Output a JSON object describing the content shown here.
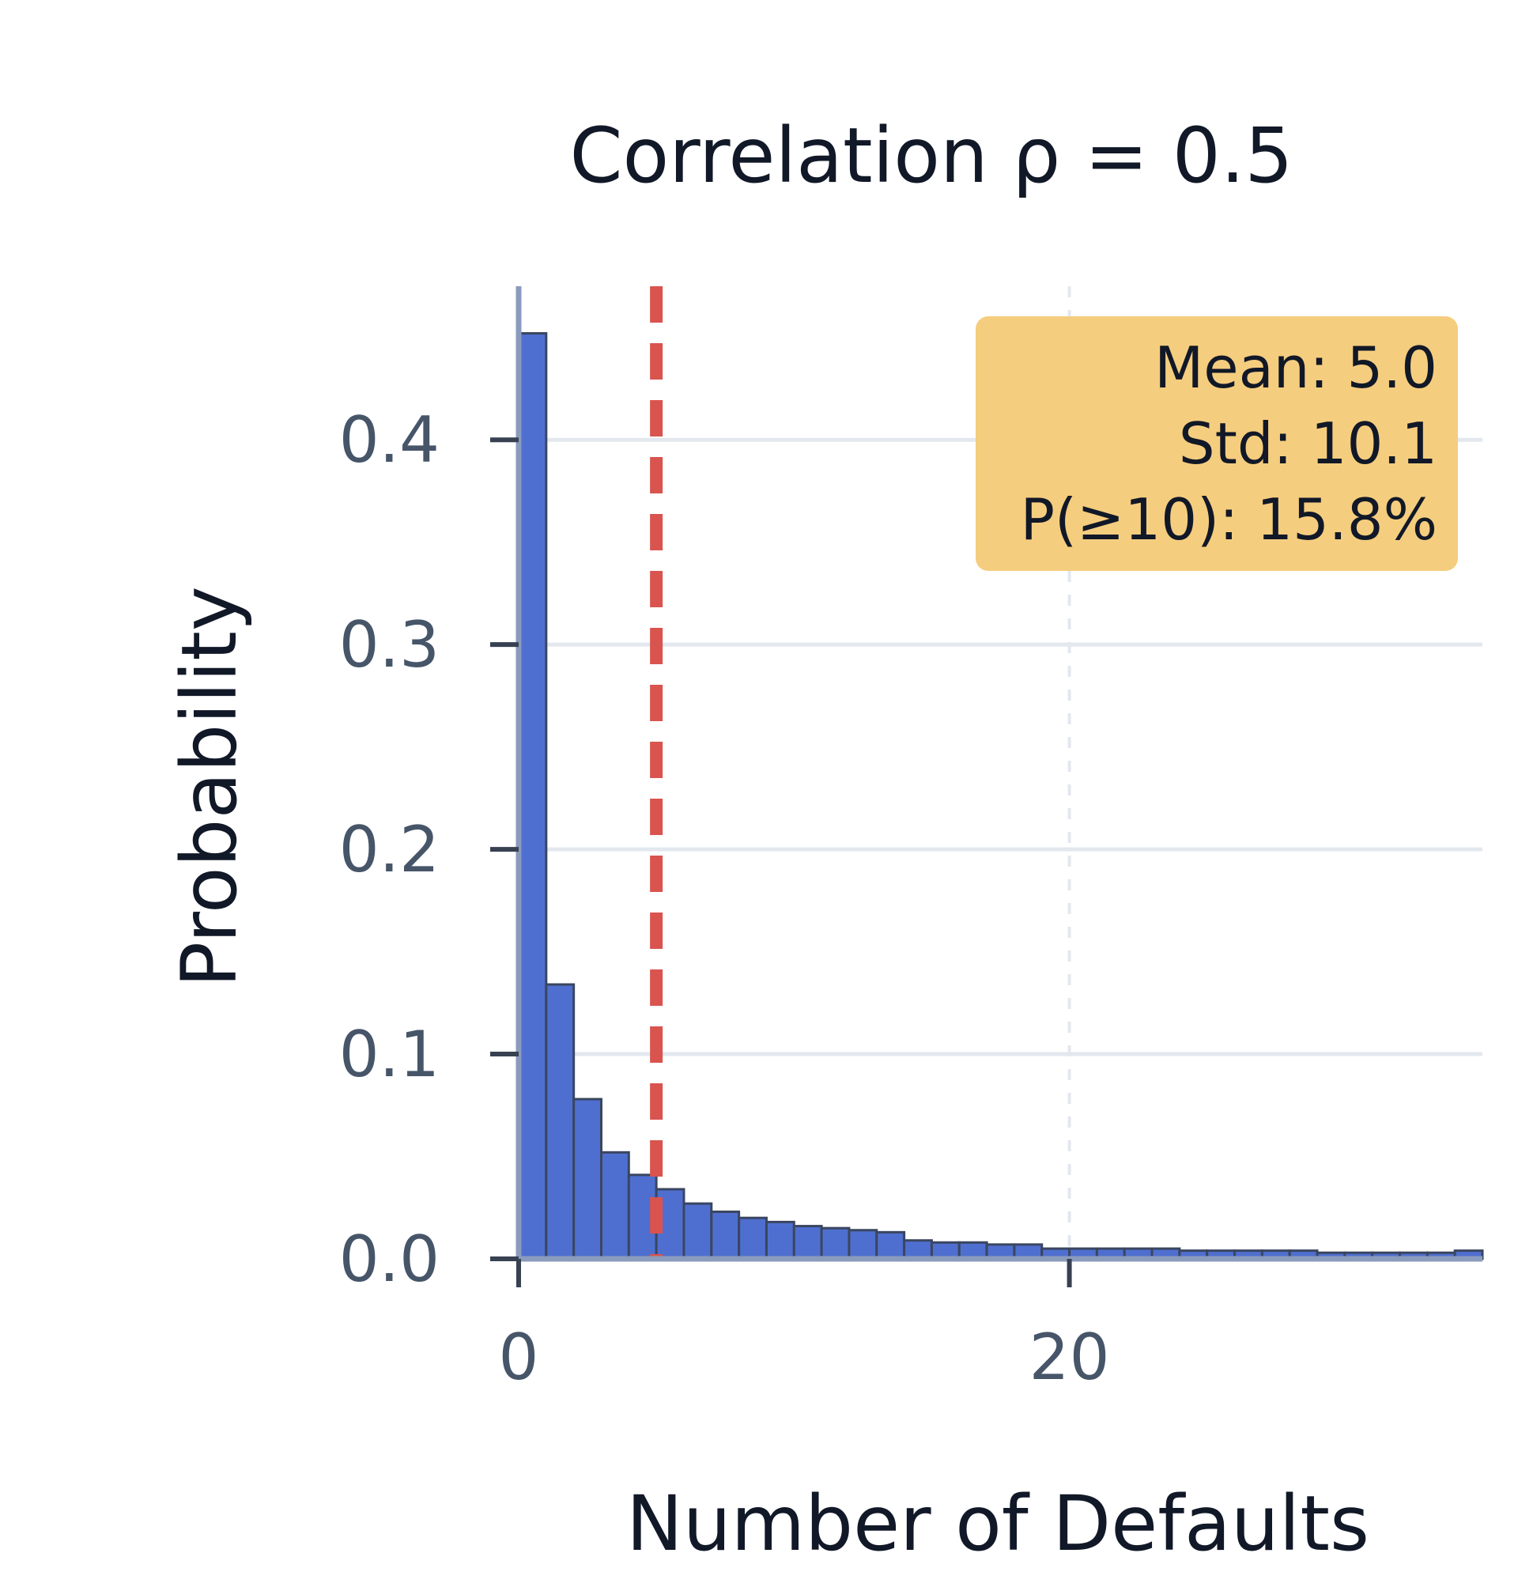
{
  "chart_data": {
    "type": "bar",
    "title": "Correlation ρ = 0.5",
    "xlabel": "Number of Defaults",
    "ylabel": "Probability",
    "xlim": [
      0,
      35
    ],
    "ylim": [
      0,
      0.475
    ],
    "x_ticks": [
      0,
      20
    ],
    "y_ticks": [
      0.0,
      0.1,
      0.2,
      0.3,
      0.4
    ],
    "y_tick_labels": [
      "0.0",
      "0.1",
      "0.2",
      "0.3",
      "0.4"
    ],
    "x_tick_labels": [
      "0",
      "20"
    ],
    "grid": "y-solid, x-dashed",
    "bins": [
      0,
      1,
      2,
      3,
      4,
      5,
      6,
      7,
      8,
      9,
      10,
      11,
      12,
      13,
      14,
      15,
      16,
      17,
      18,
      19,
      20,
      21,
      22,
      23,
      24,
      25,
      26,
      27,
      28,
      29,
      30,
      31,
      32,
      33,
      34
    ],
    "values": [
      0.452,
      0.134,
      0.078,
      0.052,
      0.041,
      0.034,
      0.027,
      0.023,
      0.02,
      0.018,
      0.016,
      0.015,
      0.014,
      0.013,
      0.009,
      0.008,
      0.008,
      0.007,
      0.007,
      0.005,
      0.005,
      0.005,
      0.005,
      0.005,
      0.004,
      0.004,
      0.004,
      0.004,
      0.004,
      0.003,
      0.003,
      0.003,
      0.003,
      0.003,
      0.004
    ],
    "mean_line": 5.0,
    "annotation": {
      "lines": [
        "Mean: 5.0",
        "Std: 10.1",
        "P(≥10): 15.8%"
      ],
      "position": "top-right"
    },
    "colors": {
      "bar_fill": "#4f6fd0",
      "bar_edge": "#3a4660",
      "mean_line": "#d9534f",
      "stats_box": "#f5cd7e",
      "axis": "#8a9bbd",
      "grid": "#e3e8ef"
    }
  }
}
